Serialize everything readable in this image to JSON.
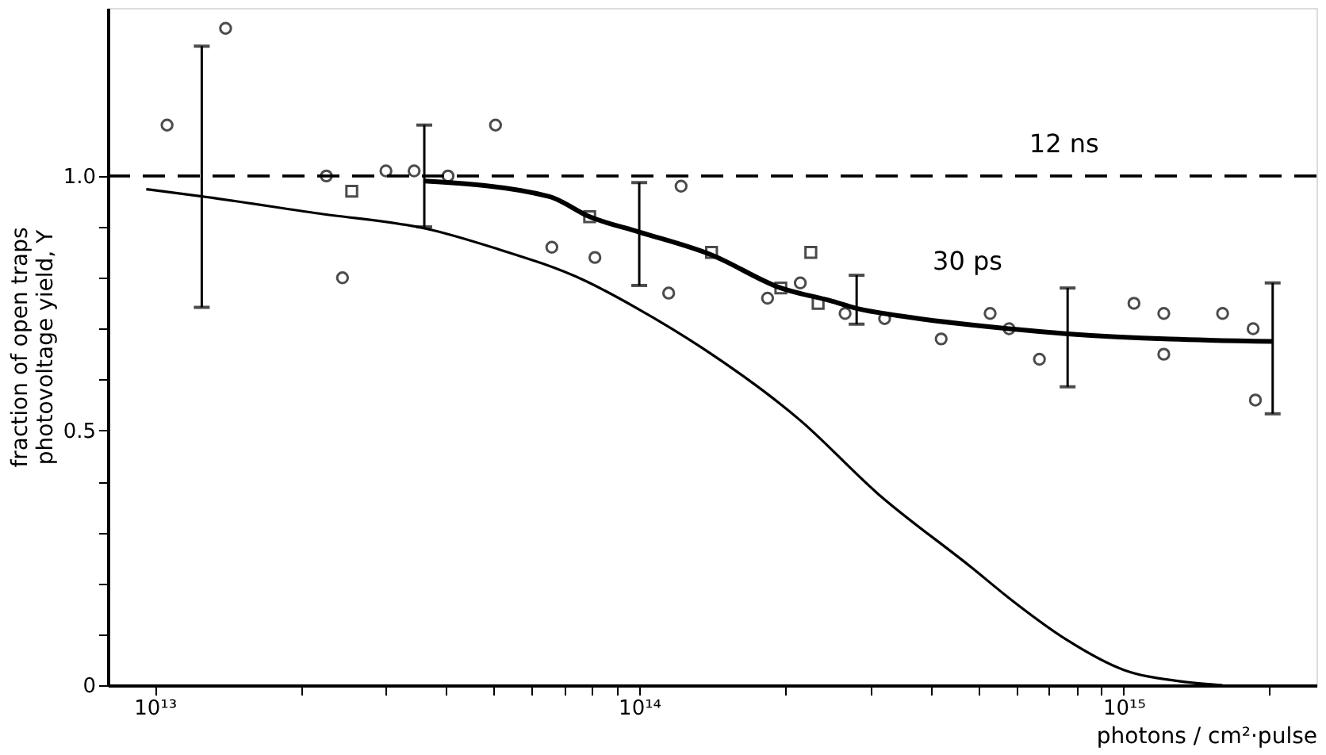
{
  "chart_data": {
    "type": "scatter",
    "xlabel": "photons / cm²·pulse",
    "ylabel": "fraction of open traps\nphotovoltage yield, Y",
    "log": "x",
    "grid": false,
    "legend": false,
    "xlim": [
      8000000000000.0,
      2500000000000000.0
    ],
    "ylim": [
      0,
      1.33
    ],
    "xticks": [
      {
        "value": 10000000000000.0,
        "label": "10¹³"
      },
      {
        "value": 20000000000000.0,
        "label": null
      },
      {
        "value": 30000000000000.0,
        "label": null
      },
      {
        "value": 40000000000000.0,
        "label": null
      },
      {
        "value": 50000000000000.0,
        "label": null
      },
      {
        "value": 60000000000000.0,
        "label": null
      },
      {
        "value": 70000000000000.0,
        "label": null
      },
      {
        "value": 80000000000000.0,
        "label": null
      },
      {
        "value": 90000000000000.0,
        "label": null
      },
      {
        "value": 100000000000000.0,
        "label": "10¹⁴"
      },
      {
        "value": 200000000000000.0,
        "label": null
      },
      {
        "value": 300000000000000.0,
        "label": null
      },
      {
        "value": 400000000000000.0,
        "label": null
      },
      {
        "value": 500000000000000.0,
        "label": null
      },
      {
        "value": 600000000000000.0,
        "label": null
      },
      {
        "value": 700000000000000.0,
        "label": null
      },
      {
        "value": 800000000000000.0,
        "label": null
      },
      {
        "value": 900000000000000.0,
        "label": null
      },
      {
        "value": 1000000000000000.0,
        "label": "10¹⁵"
      },
      {
        "value": 2000000000000000.0,
        "label": null
      }
    ],
    "yticks": [
      0,
      {
        "value": 0.1,
        "label": null
      },
      {
        "value": 0.2,
        "label": null
      },
      {
        "value": 0.3,
        "label": null
      },
      {
        "value": 0.4,
        "label": null
      },
      0.5,
      {
        "value": 0.6,
        "label": null
      },
      {
        "value": 0.7,
        "label": null
      },
      {
        "value": 0.8,
        "label": null
      },
      {
        "value": 0.9,
        "label": null
      },
      {
        "value": 1.0,
        "label": "1.0"
      }
    ],
    "ref_lines": [
      {
        "axis": "y",
        "value": 1.0,
        "label": "12 ns",
        "line_style": "dashed",
        "color": "#000000"
      }
    ],
    "series": [
      {
        "marker": "circle",
        "color": "#000000",
        "x": [
          10600000000000.0,
          14000000000000.0,
          22600000000000.0,
          24400000000000.0,
          30000000000000.0,
          34300000000000.0,
          40300000000000.0,
          50500000000000.0,
          66000000000000.0,
          81000000000000.0,
          115000000000000.0,
          122000000000000.0,
          184000000000000.0,
          215000000000000.0,
          266000000000000.0,
          321000000000000.0,
          420000000000000.0,
          530000000000000.0,
          580000000000000.0,
          670000000000000.0,
          1050000000000000.0,
          1210000000000000.0,
          1210000000000000.0,
          1600000000000000.0,
          1850000000000000.0,
          1870000000000000.0
        ],
        "values": [
          1.1,
          1.29,
          1.0,
          0.8,
          1.01,
          1.01,
          1.0,
          1.1,
          0.86,
          0.84,
          0.77,
          0.98,
          0.76,
          0.79,
          0.73,
          0.72,
          0.68,
          0.73,
          0.7,
          0.64,
          0.75,
          0.73,
          0.65,
          0.73,
          0.7,
          0.56
        ]
      },
      {
        "marker": "square",
        "color": "#000000",
        "x": [
          25500000000000.0,
          79000000000000.0,
          141000000000000.0,
          196000000000000.0,
          226000000000000.0,
          234000000000000.0
        ],
        "values": [
          0.97,
          0.92,
          0.85,
          0.78,
          0.85,
          0.75
        ]
      },
      {
        "type": "line",
        "name": "30 ps",
        "color": "#000000",
        "line_style": "solid",
        "x": [
          36000000000000.0,
          65000000000000.0,
          79000000000000.0,
          100000000000000.0,
          141000000000000.0,
          196000000000000.0,
          248000000000000.0,
          281000000000000.0,
          347000000000000.0,
          580000000000000.0,
          766000000000000.0,
          2030000000000000.0
        ],
        "values": [
          0.99,
          0.96,
          0.92,
          0.89,
          0.845,
          0.78,
          0.755,
          0.74,
          0.725,
          0.7,
          0.69,
          0.675
        ],
        "errors": [
          [
            0.9,
            1.1
          ],
          null,
          null,
          [
            0.785,
            0.987
          ],
          null,
          null,
          null,
          [
            0.709,
            0.805
          ],
          null,
          null,
          [
            0.586,
            0.78
          ],
          [
            0.533,
            0.79
          ]
        ]
      },
      {
        "type": "line",
        "color": "#000000",
        "line_style": "solid",
        "x": [
          9600000000000.0,
          12500000000000.0,
          21500000000000.0,
          37300000000000.0,
          49700000000000.0,
          77000000000000.0,
          99000000000000.0,
          135000000000000.0,
          215000000000000.0,
          310000000000000.0,
          484000000000000.0,
          600000000000000.0,
          760000000000000.0,
          1000000000000000.0,
          1300000000000000.0,
          1600000000000000.0
        ],
        "values": [
          0.974,
          0.96,
          0.927,
          0.894,
          0.86,
          0.795,
          0.74,
          0.662,
          0.52,
          0.377,
          0.232,
          0.16,
          0.09,
          0.03,
          0.008,
          0.0
        ],
        "errors": [
          null,
          [
            0.742,
            1.255
          ],
          null,
          null,
          null,
          null,
          null,
          null,
          null,
          null,
          null,
          null,
          null,
          null,
          null,
          null
        ]
      }
    ]
  }
}
